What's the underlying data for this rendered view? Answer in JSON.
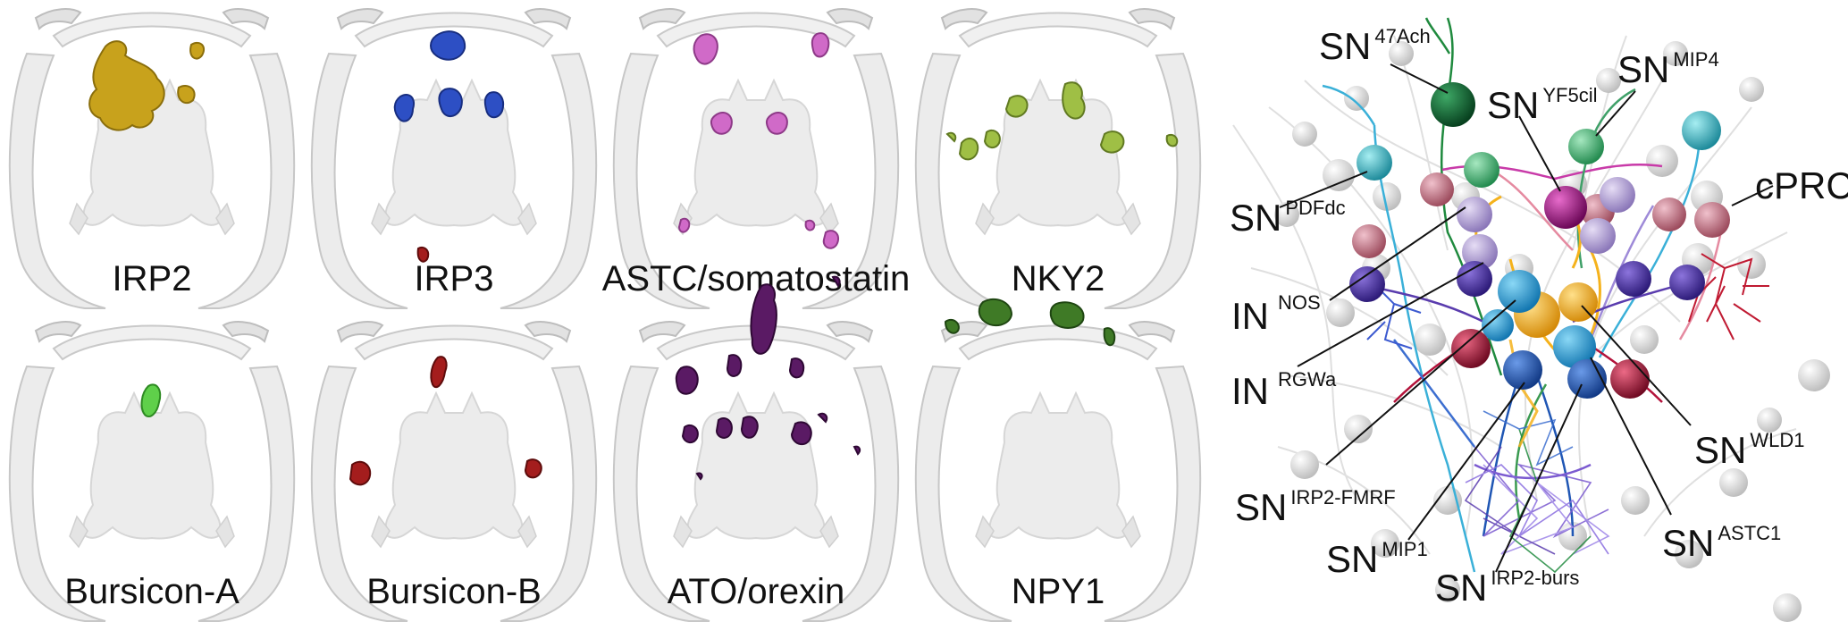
{
  "panels": [
    {
      "label": "IRP2",
      "color": "#c8a21c"
    },
    {
      "label": "IRP3",
      "color": "#2d4fc4"
    },
    {
      "label": "ASTC/somatostatin",
      "color": "#d06ac8"
    },
    {
      "label": "NKY2",
      "color": "#9fbf45"
    },
    {
      "label": "Bursicon-A",
      "color": "#5fd04a"
    },
    {
      "label": "Bursicon-B",
      "color": "#a41d1d"
    },
    {
      "label": "ATO/orexin",
      "color": "#5a1a64"
    },
    {
      "label": "NPY1",
      "color": "#3f7a26"
    }
  ],
  "neurons": [
    {
      "main": "SN",
      "sup": "47Ach"
    },
    {
      "main": "SN",
      "sup": "MIP4"
    },
    {
      "main": "SN",
      "sup": "YF5cil"
    },
    {
      "main": "SN",
      "sup": "PDFdc"
    },
    {
      "main": "cPRC",
      "sup": ""
    },
    {
      "main": "IN",
      "sup": "NOS"
    },
    {
      "main": "IN",
      "sup": "RGWa"
    },
    {
      "main": "SN",
      "sup": "WLD1"
    },
    {
      "main": "SN",
      "sup": "IRP2-FMRF"
    },
    {
      "main": "SN",
      "sup": "ASTC1"
    },
    {
      "main": "SN",
      "sup": "MIP1"
    },
    {
      "main": "SN",
      "sup": "IRP2-burs"
    }
  ],
  "sphere_colors": {
    "grey": "#e6e6e6",
    "pink": "#c97a8c",
    "lavender": "#b7a6d8",
    "purple": "#5a3cae",
    "cyan": "#2aa8dc",
    "teal": "#3fc0cc",
    "green_light": "#4cbc7a",
    "green_dark": "#0f6b35",
    "magenta": "#a8128c",
    "crimson": "#b3123a",
    "orange": "#f5b21c",
    "blue": "#1f56b4"
  }
}
